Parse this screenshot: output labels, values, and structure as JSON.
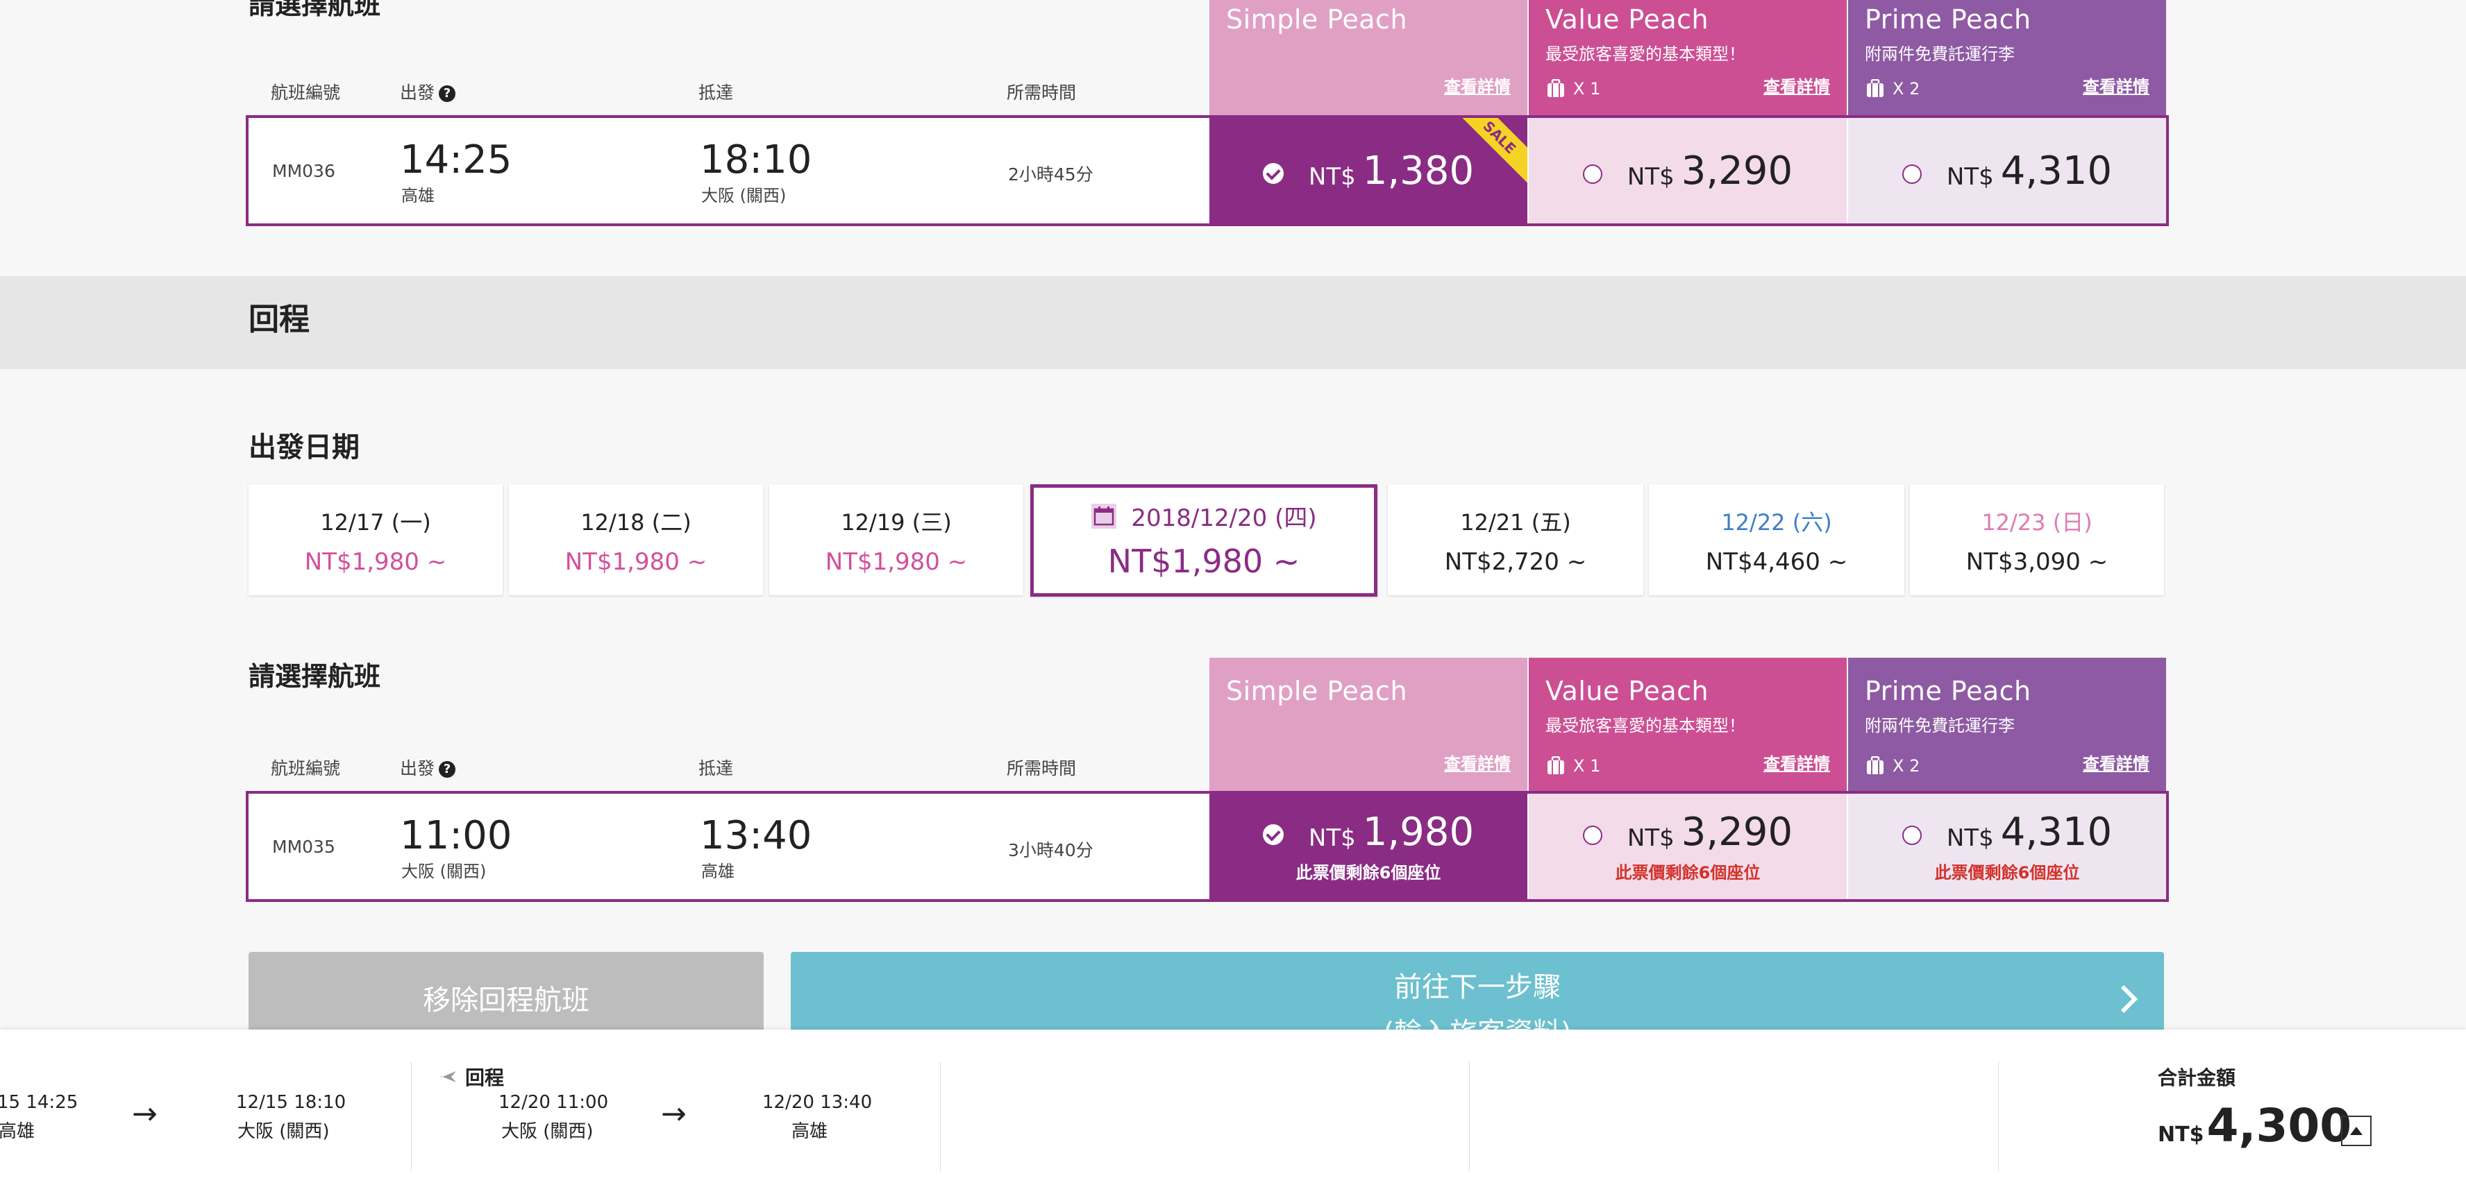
{
  "outbound": {
    "section_title": "請選擇航班",
    "columns": {
      "flight_no": "航班編號",
      "depart": "出發",
      "arrive": "抵達",
      "duration": "所需時間"
    },
    "fares": [
      {
        "name": "Simple Peach",
        "sub": "",
        "bags": "",
        "details": "查看詳情",
        "color": "#e0a0c4"
      },
      {
        "name": "Value Peach",
        "sub": "最受旅客喜愛的基本類型！",
        "bags": "X 1",
        "details": "查看詳情",
        "color": "#cc4f93"
      },
      {
        "name": "Prime Peach",
        "sub": "附兩件免費託運行李",
        "bags": "X 2",
        "details": "查看詳情",
        "color": "#8e5aa3"
      }
    ],
    "flight": {
      "number": "MM036",
      "dep_time": "14:25",
      "dep_city": "高雄",
      "arr_time": "18:10",
      "arr_city": "大阪 (關西)",
      "duration": "2小時45分",
      "currency": "NT$",
      "prices": [
        "1,380",
        "3,290",
        "4,310"
      ],
      "sale_badge": "SALE"
    }
  },
  "return_header": "回程",
  "date_section": {
    "title": "出發日期",
    "dates": [
      {
        "date": "12/17 (一)",
        "price": "NT$1,980 ~"
      },
      {
        "date": "12/18 (二)",
        "price": "NT$1,980 ~"
      },
      {
        "date": "12/19 (三)",
        "price": "NT$1,980 ~"
      },
      {
        "date": "2018/12/20 (四)",
        "price": "NT$1,980 ~",
        "selected": true
      },
      {
        "date": "12/21 (五)",
        "price": "NT$2,720 ~"
      },
      {
        "date": "12/22 (六)",
        "price": "NT$4,460 ~"
      },
      {
        "date": "12/23 (日)",
        "price": "NT$3,090 ~"
      }
    ]
  },
  "return": {
    "section_title": "請選擇航班",
    "columns": {
      "flight_no": "航班編號",
      "depart": "出發",
      "arrive": "抵達",
      "duration": "所需時間"
    },
    "fares": [
      {
        "name": "Simple Peach",
        "sub": "",
        "bags": "",
        "details": "查看詳情"
      },
      {
        "name": "Value Peach",
        "sub": "最受旅客喜愛的基本類型！",
        "bags": "X 1",
        "details": "查看詳情"
      },
      {
        "name": "Prime Peach",
        "sub": "附兩件免費託運行李",
        "bags": "X 2",
        "details": "查看詳情"
      }
    ],
    "flight": {
      "number": "MM035",
      "dep_time": "11:00",
      "dep_city": "大阪 (關西)",
      "arr_time": "13:40",
      "arr_city": "高雄",
      "duration": "3小時40分",
      "currency": "NT$",
      "prices": [
        "1,980",
        "3,290",
        "4,310"
      ],
      "seats_left": "此票價剩餘6個座位"
    }
  },
  "buttons": {
    "remove_return": "移除回程航班",
    "next_line1": "前往下一步驟",
    "next_line2": "(輸入旅客資料)"
  },
  "footer": {
    "outbound": {
      "dep_datetime": "15 14:25",
      "dep_city": "高雄",
      "arr_datetime": "12/15 18:10",
      "arr_city": "大阪 (關西)"
    },
    "return": {
      "label": "回程",
      "dep_datetime": "12/20 11:00",
      "dep_city": "大阪 (關西)",
      "arr_datetime": "12/20 13:40",
      "arr_city": "高雄"
    },
    "total_label": "合計金額",
    "total_currency": "NT$",
    "total_amount": "4,300"
  }
}
